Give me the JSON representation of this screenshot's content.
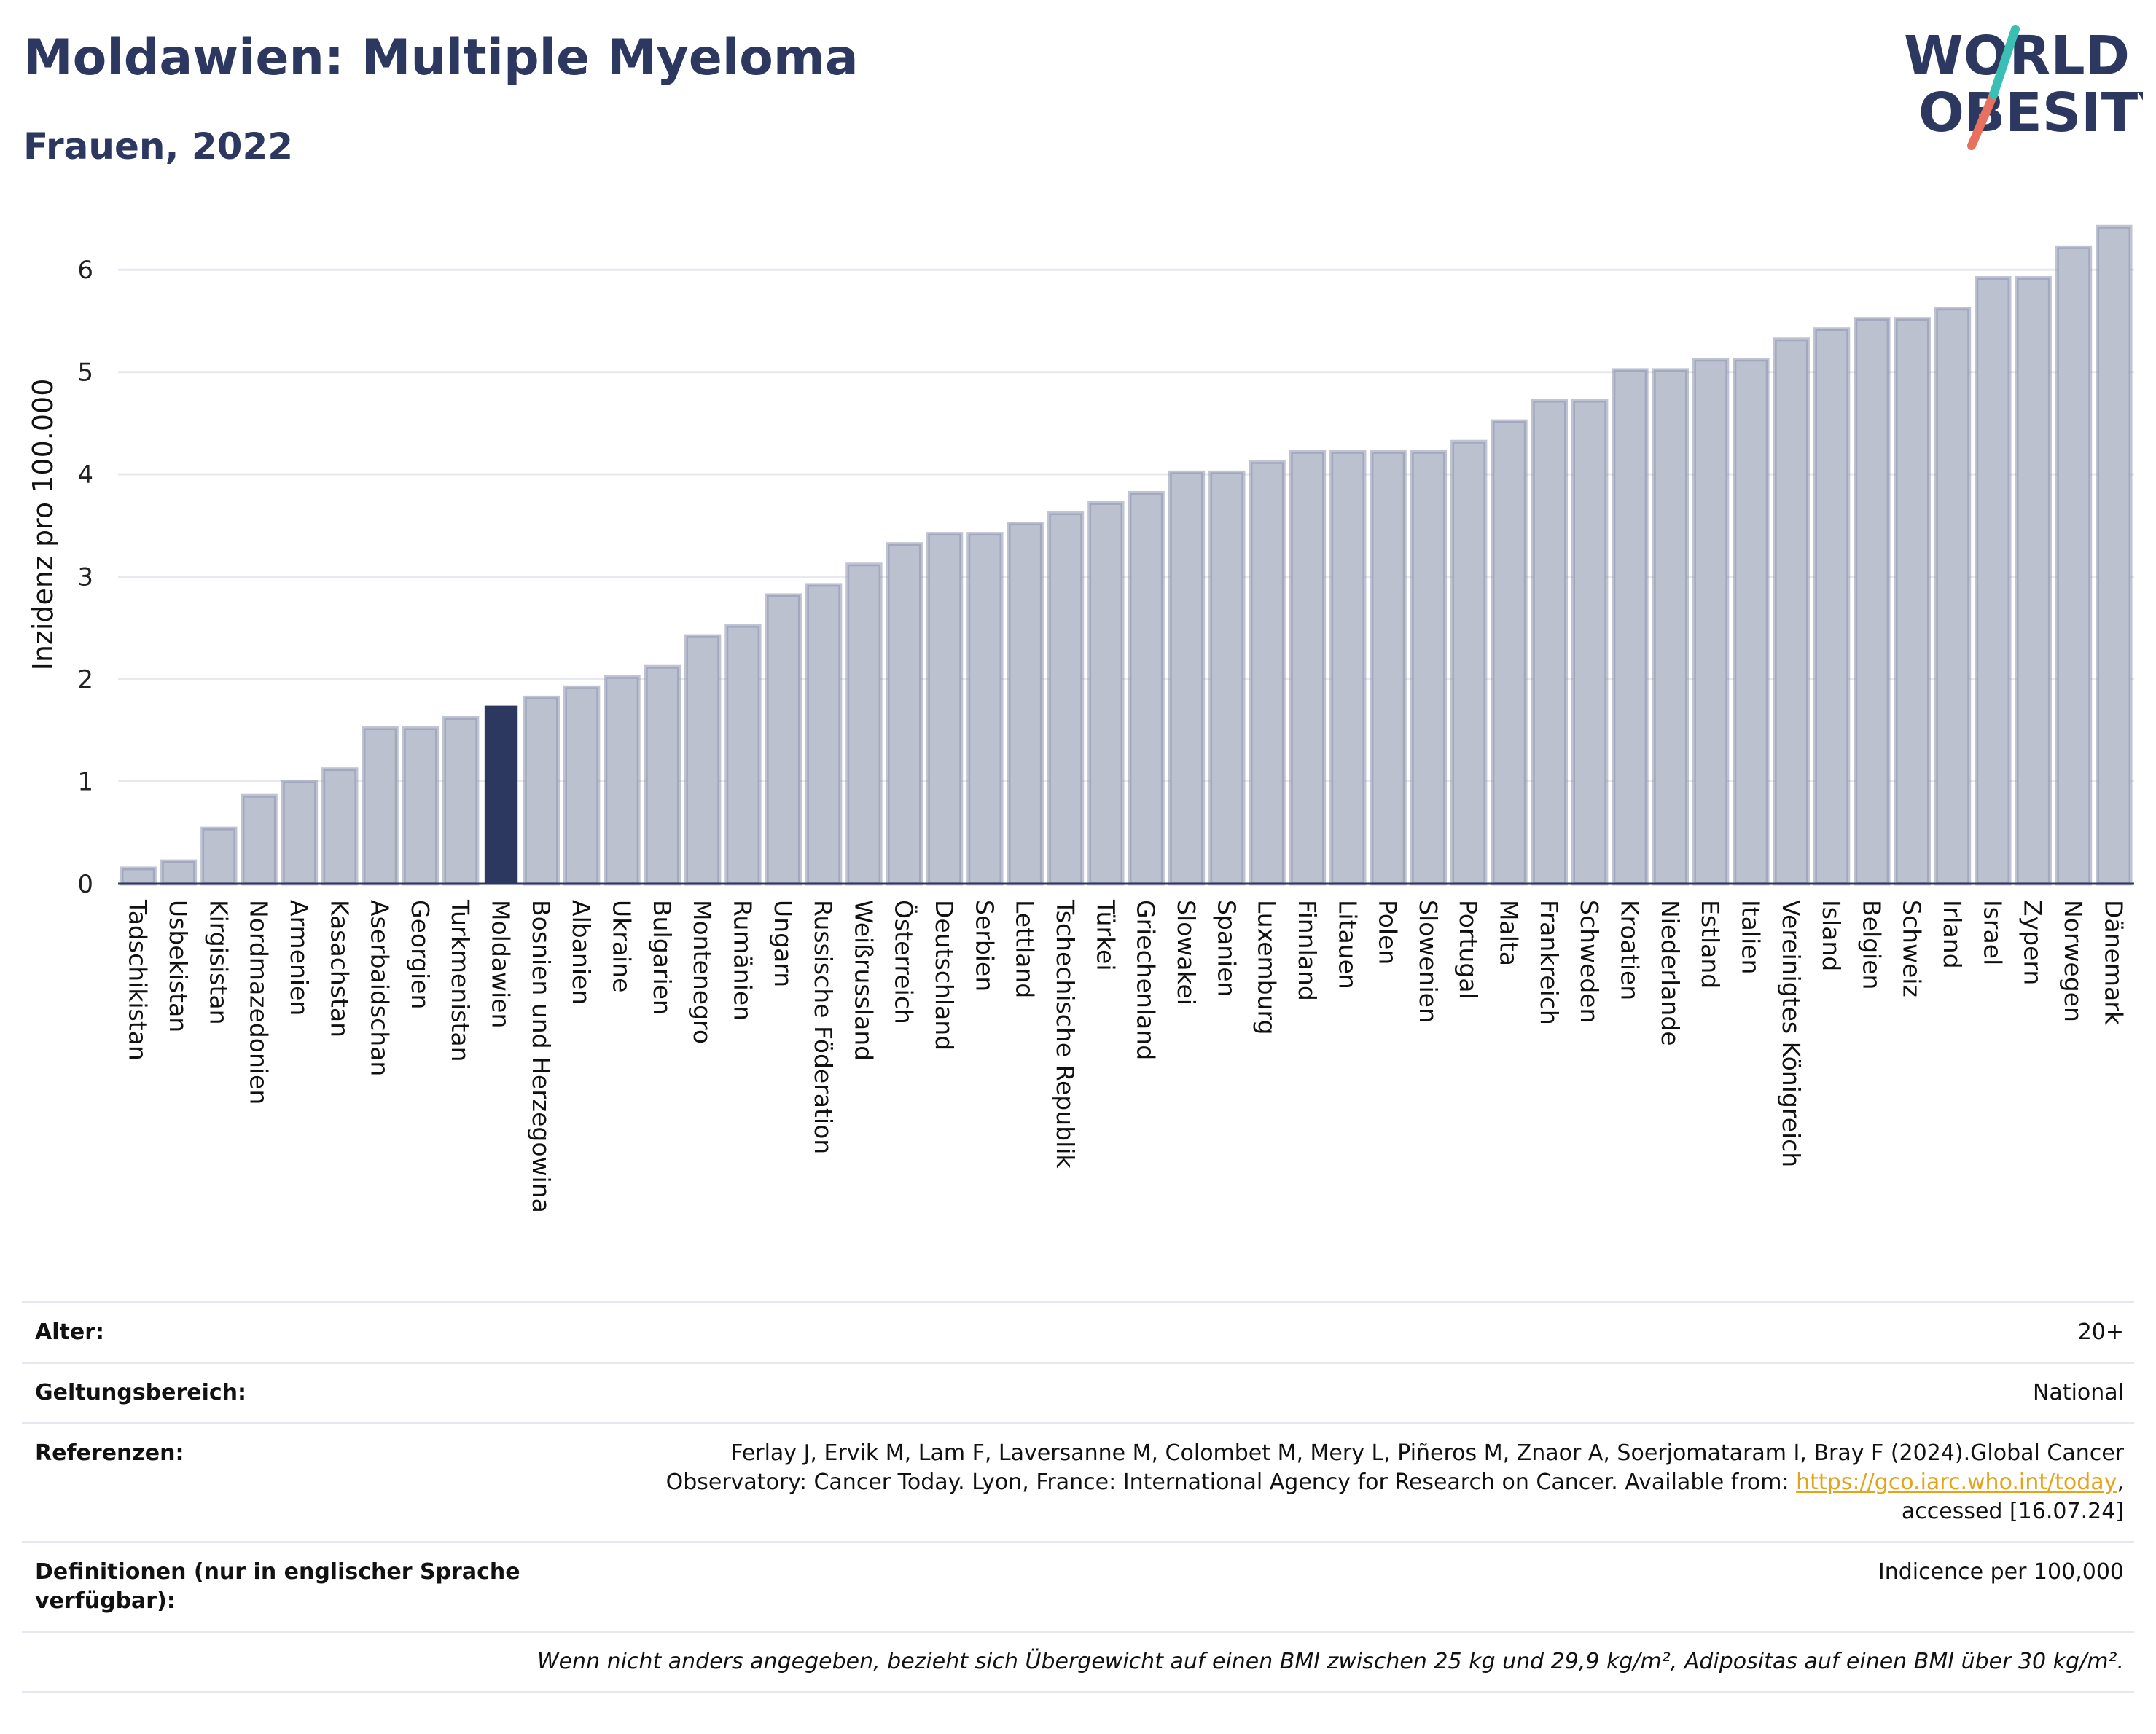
{
  "header": {
    "title": "Moldawien: Multiple Myeloma",
    "subtitle": "Frauen, 2022"
  },
  "logo": {
    "line1": "WORLD",
    "line2": "OBESITY",
    "accent_teal": "#3bbfb4",
    "accent_coral": "#e8705e"
  },
  "colors": {
    "bar": "#bcc1d0",
    "bar_border": "#8c93ad",
    "highlight": "#2d3861",
    "grid": "#e7e9ef",
    "axis": "#2d3861"
  },
  "chart_data": {
    "type": "bar",
    "ylabel": "Inzidenz pro 100.000",
    "ylim": [
      0,
      6.5
    ],
    "yticks": [
      0,
      1,
      2,
      3,
      4,
      5,
      6
    ],
    "highlight": "Moldawien",
    "categories": [
      "Tadschikistan",
      "Usbekistan",
      "Kirgisistan",
      "Nordmazedonien",
      "Armenien",
      "Kasachstan",
      "Aserbaidschan",
      "Georgien",
      "Turkmenistan",
      "Moldawien",
      "Bosnien und Herzegowina",
      "Albanien",
      "Ukraine",
      "Bulgarien",
      "Montenegro",
      "Rumänien",
      "Ungarn",
      "Russische Föderation",
      "Weißrussland",
      "Österreich",
      "Deutschland",
      "Serbien",
      "Lettland",
      "Tschechische Republik",
      "Türkei",
      "Griechenland",
      "Slowakei",
      "Spanien",
      "Luxemburg",
      "Finnland",
      "Litauen",
      "Polen",
      "Slowenien",
      "Portugal",
      "Malta",
      "Frankreich",
      "Schweden",
      "Kroatien",
      "Niederlande",
      "Estland",
      "Italien",
      "Vereinigtes Königreich",
      "Island",
      "Belgien",
      "Schweiz",
      "Irland",
      "Israel",
      "Zypern",
      "Norwegen",
      "Dänemark"
    ],
    "values": [
      0.15,
      0.22,
      0.54,
      0.86,
      1.0,
      1.12,
      1.52,
      1.52,
      1.62,
      1.74,
      1.82,
      1.92,
      2.02,
      2.12,
      2.42,
      2.52,
      2.82,
      2.92,
      3.12,
      3.32,
      3.42,
      3.42,
      3.52,
      3.62,
      3.72,
      3.82,
      4.02,
      4.02,
      4.12,
      4.22,
      4.22,
      4.22,
      4.22,
      4.32,
      4.52,
      4.72,
      4.72,
      5.02,
      5.02,
      5.12,
      5.12,
      5.32,
      5.42,
      5.52,
      5.52,
      5.62,
      5.92,
      5.92,
      6.22,
      6.42
    ]
  },
  "meta": {
    "age_label": "Alter:",
    "age_value": "20+",
    "scope_label": "Geltungsbereich:",
    "scope_value": "National",
    "ref_label": "Referenzen:",
    "ref_text_1": "Ferlay J, Ervik M, Lam F, Laversanne M, Colombet M, Mery L, Piñeros M, Znaor A, Soerjomataram I, Bray F (2024).Global Cancer",
    "ref_text_2": "Observatory: Cancer Today. Lyon, France: International Agency for Research on Cancer. Available from: ",
    "ref_link": "https://gco.iarc.who.int/today",
    "ref_text_3": ",",
    "ref_text_4": "accessed [16.07.24]",
    "def_label": "Definitionen (nur in englischer Sprache verfügbar):",
    "def_value": "Indicence per 100,000",
    "note": "Wenn nicht anders angegeben, bezieht sich Übergewicht auf einen BMI zwischen 25 kg und 29,9 kg/m², Adipositas auf einen BMI über 30 kg/m²."
  }
}
